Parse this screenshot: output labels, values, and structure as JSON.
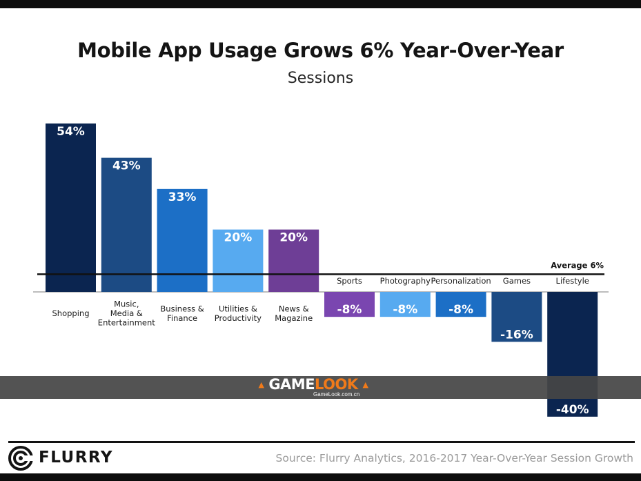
{
  "chart_data": {
    "type": "bar",
    "title": "Mobile App Usage Grows 6% Year-Over-Year",
    "subtitle": "Sessions",
    "categories": [
      [
        "Shopping"
      ],
      [
        "Music,",
        "Media &",
        "Entertainment"
      ],
      [
        "Business &",
        "Finance"
      ],
      [
        "Utilities &",
        "Productivity"
      ],
      [
        "News &",
        "Magazine"
      ],
      [
        "Sports"
      ],
      [
        "Photography"
      ],
      [
        "Personalization"
      ],
      [
        "Games"
      ],
      [
        "Lifestyle"
      ]
    ],
    "values": [
      54,
      43,
      33,
      20,
      20,
      -8,
      -8,
      -8,
      -16,
      -40
    ],
    "value_labels": [
      "54%",
      "43%",
      "33%",
      "20%",
      "20%",
      "-8%",
      "-8%",
      "-8%",
      "-16%",
      "-40%"
    ],
    "bar_colors": [
      "#0b2550",
      "#1c4b84",
      "#1c6fc6",
      "#57aaf0",
      "#6e3e96",
      "#7a46b0",
      "#57aaf0",
      "#1c6fc6",
      "#1c4b84",
      "#0b2550"
    ],
    "average": {
      "value": 6,
      "label": "Average 6%"
    },
    "grid": false,
    "legend": "none"
  },
  "watermark": {
    "main": "GAMELOOK",
    "sub": "GameLook.com.cn"
  },
  "footer": {
    "brand": "FLURRY",
    "source": "Source: Flurry Analytics, 2016-2017 Year-Over-Year Session Growth"
  }
}
